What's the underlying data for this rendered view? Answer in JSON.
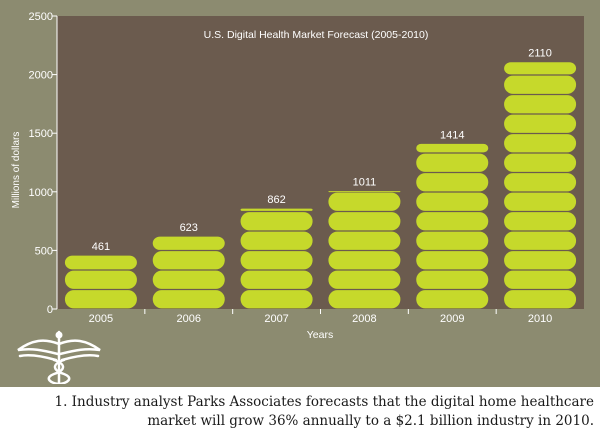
{
  "chart_data": {
    "type": "bar",
    "title": "U.S. Digital Health Market Forecast (2005-2010)",
    "xlabel": "Years",
    "ylabel": "Millions of dollars",
    "categories": [
      "2005",
      "2006",
      "2007",
      "2008",
      "2009",
      "2010"
    ],
    "values": [
      461,
      623,
      862,
      1011,
      1414,
      2110
    ],
    "data_labels": [
      "461",
      "623",
      "862",
      "1011",
      "1414",
      "2110"
    ],
    "ylim": [
      0,
      2500
    ],
    "yticks": [
      "0",
      "500",
      "1000",
      "1500",
      "2000",
      "2500"
    ],
    "grid": false,
    "colors": {
      "plot_background": "#6b5b4e",
      "panel_background": "#8c8b70",
      "bar": "#c6d92b",
      "bar_groove": "#7f8f12",
      "text": "#ffffff"
    }
  },
  "caption": {
    "line1": "1. Industry analyst Parks Associates forecasts that the digital home healthcare",
    "line2": "market will grow 36% annually to a $2.1 billion industry in 2010."
  },
  "logo": {
    "icon": "caduceus-icon"
  }
}
